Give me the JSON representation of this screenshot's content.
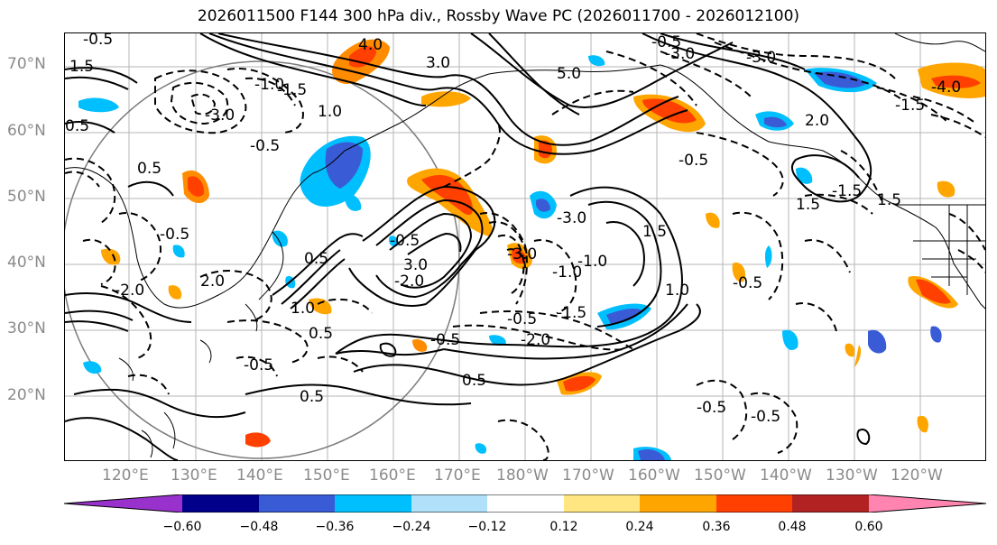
{
  "title": "2026011500 F144 300 hPa div., Rossby Wave PC (2026011700 - 2026012100)",
  "lat_labels": [
    "70°N",
    "60°N",
    "50°N",
    "40°N",
    "30°N",
    "20°N"
  ],
  "lon_labels": [
    "120°E",
    "130°E",
    "140°E",
    "150°E",
    "160°E",
    "170°E",
    "180°W",
    "170°W",
    "160°W",
    "150°W",
    "140°W",
    "130°W",
    "120°W"
  ],
  "colorbar": {
    "ticks": [
      "−0.60",
      "−0.48",
      "−0.36",
      "−0.24",
      "−0.12",
      "0.12",
      "0.24",
      "0.36",
      "0.48",
      "0.60"
    ],
    "colors": [
      "#9932cc",
      "#00008b",
      "#3a5bd6",
      "#00bfff",
      "#b0e0fa",
      "#ffffff",
      "#ffe680",
      "#ffa500",
      "#ff4000",
      "#b22222",
      "#ff85b0"
    ]
  },
  "contour_labels": [
    "-0.5",
    "4.0",
    "1.5",
    "3.0",
    "5.0",
    "-3.0",
    "-1.0",
    "-3.0",
    "-1.5",
    "-3.0",
    "-0.5",
    "1.0",
    "0.5",
    "-0.5",
    "2.0",
    "-0.5",
    "1.5",
    "0.5",
    "-0.5",
    "-0.5",
    "3.0",
    "-2.0",
    "-3.0",
    "1.5",
    "-1.5",
    "0.5",
    "-0.5",
    "-1.5",
    "2.0",
    "1.0",
    "-0.5",
    "-1.0",
    "0.5",
    "-2.0",
    "1.0",
    "-0.5",
    "0.5",
    "-0.5",
    "-0.5",
    "-0.5",
    "-2.0",
    "0.5",
    "-4.0",
    "1.5",
    "-3.0",
    "-1.0",
    "-1.5"
  ]
}
